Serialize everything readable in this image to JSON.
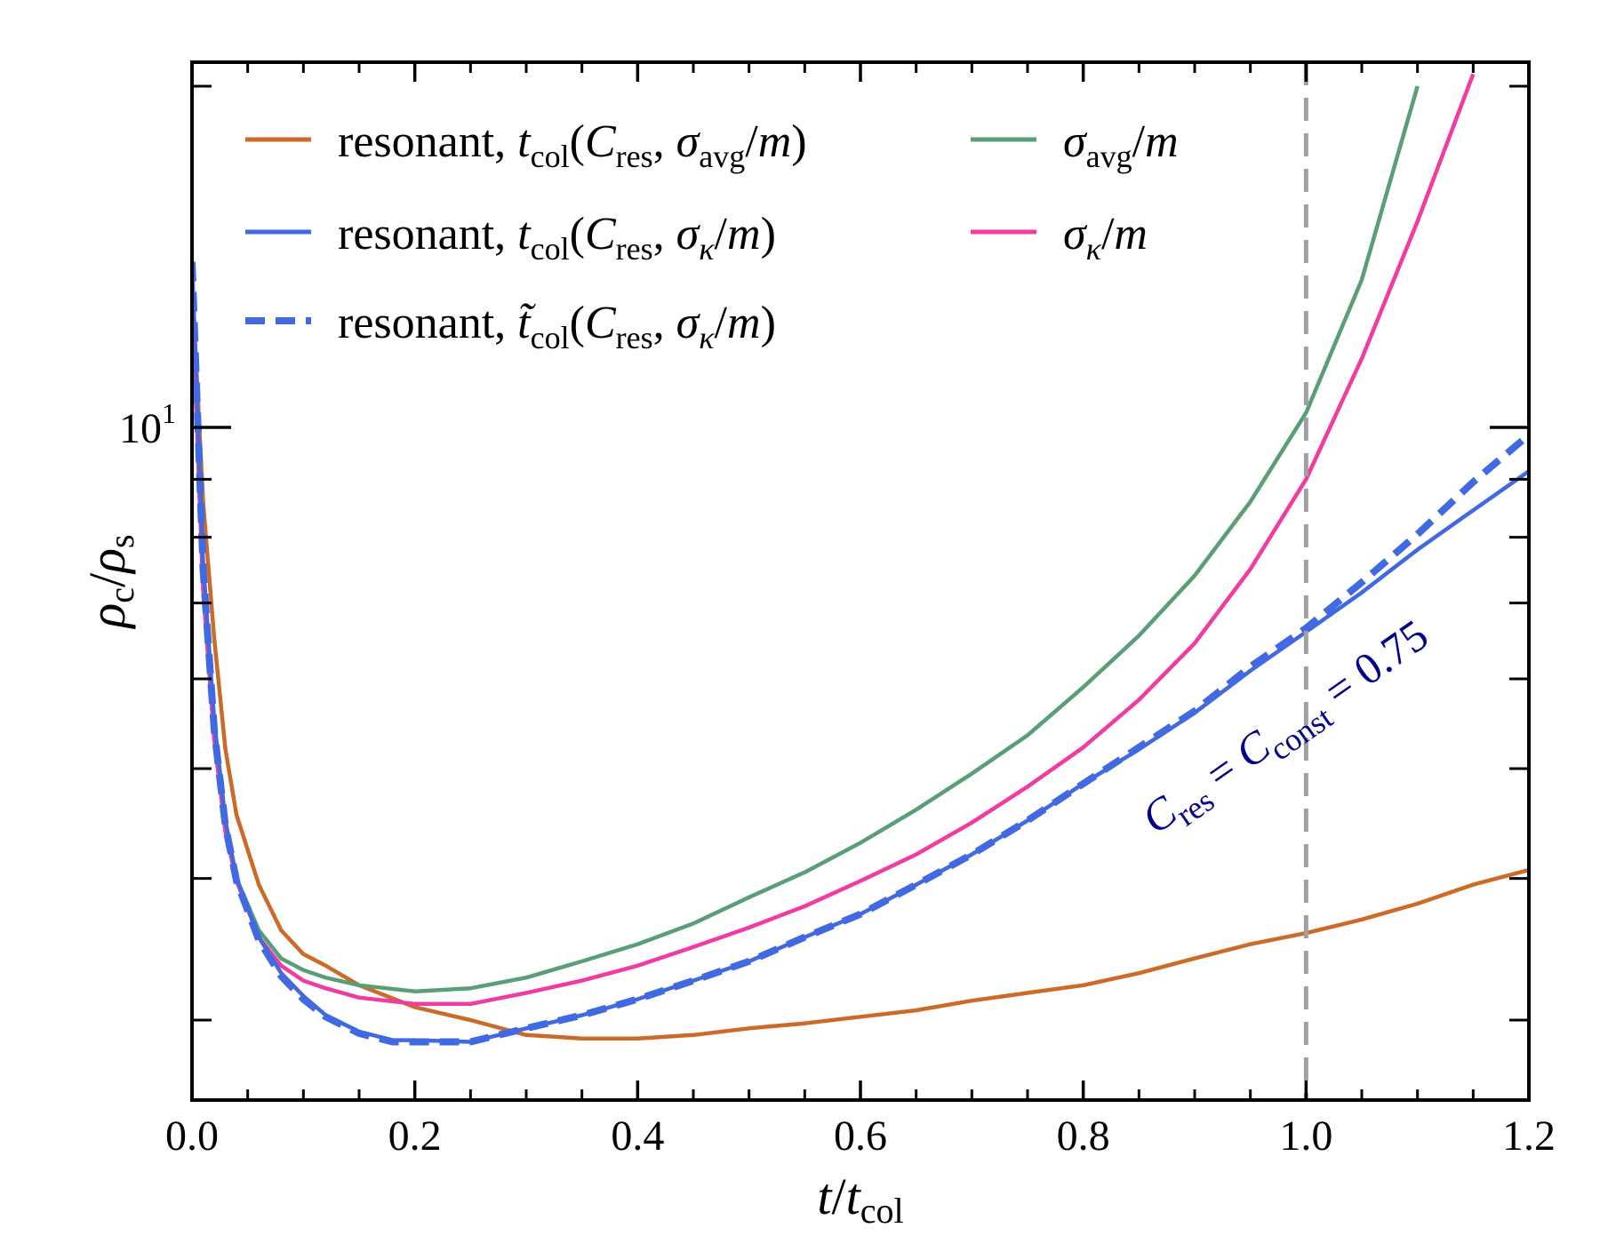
{
  "chart_data": {
    "type": "line",
    "xlabel": "t/t_col",
    "ylabel": "ρ_c/ρ_s",
    "xlim": [
      0.0,
      1.2
    ],
    "ylim": [
      2.55,
      21.0
    ],
    "yscale": "log",
    "x_ticks": [
      "0.0",
      "0.2",
      "0.4",
      "0.6",
      "0.8",
      "1.0",
      "1.2"
    ],
    "y_major_tick": {
      "value": 10,
      "label": "10",
      "exponent": "1"
    },
    "y_minor_ticks": [
      3,
      4,
      5,
      6,
      7,
      8,
      9,
      20
    ],
    "vline": {
      "x": 1.0,
      "color": "#a0a0a0",
      "style": "dashed"
    },
    "annotation": {
      "text": "C_res = C_const = 0.75",
      "color": "#00008b",
      "rotation_deg": -35
    },
    "legend_position": "top-left",
    "series": [
      {
        "name": "resonant, t_col(C_res, σ_avg/m)",
        "color": "#cc6a28",
        "dash": false,
        "x": [
          0.0,
          0.01,
          0.02,
          0.03,
          0.04,
          0.06,
          0.08,
          0.1,
          0.12,
          0.15,
          0.2,
          0.25,
          0.3,
          0.35,
          0.4,
          0.45,
          0.5,
          0.55,
          0.6,
          0.65,
          0.7,
          0.75,
          0.8,
          0.85,
          0.9,
          0.95,
          1.0,
          1.05,
          1.1,
          1.15,
          1.2
        ],
        "y": [
          13.5,
          8.6,
          6.5,
          5.2,
          4.55,
          3.95,
          3.6,
          3.43,
          3.35,
          3.22,
          3.08,
          3.0,
          2.91,
          2.89,
          2.89,
          2.91,
          2.95,
          2.98,
          3.02,
          3.06,
          3.12,
          3.17,
          3.22,
          3.3,
          3.4,
          3.5,
          3.58,
          3.68,
          3.8,
          3.95,
          4.07
        ]
      },
      {
        "name": "resonant, t_col(C_res, σ_κ/m)",
        "color": "#4169e1",
        "dash": false,
        "x": [
          0.0,
          0.01,
          0.02,
          0.03,
          0.04,
          0.06,
          0.08,
          0.1,
          0.12,
          0.15,
          0.18,
          0.2,
          0.25,
          0.3,
          0.35,
          0.4,
          0.45,
          0.5,
          0.55,
          0.6,
          0.65,
          0.7,
          0.75,
          0.8,
          0.85,
          0.9,
          0.95,
          1.0,
          1.05,
          1.1,
          1.15,
          1.2
        ],
        "y": [
          14.0,
          7.6,
          5.5,
          4.5,
          4.0,
          3.55,
          3.3,
          3.15,
          3.03,
          2.93,
          2.88,
          2.88,
          2.87,
          2.95,
          3.03,
          3.13,
          3.25,
          3.38,
          3.55,
          3.72,
          3.95,
          4.2,
          4.5,
          4.85,
          5.2,
          5.6,
          6.1,
          6.6,
          7.15,
          7.8,
          8.45,
          9.15
        ]
      },
      {
        "name": "resonant, t̃_col(C_res, σ_κ/m)",
        "color": "#4169e1",
        "dash": true,
        "x": [
          0.0,
          0.01,
          0.02,
          0.03,
          0.04,
          0.06,
          0.08,
          0.1,
          0.12,
          0.15,
          0.18,
          0.2,
          0.25,
          0.3,
          0.35,
          0.4,
          0.45,
          0.5,
          0.55,
          0.6,
          0.65,
          0.7,
          0.75,
          0.8,
          0.85,
          0.9,
          0.95,
          1.0,
          1.05,
          1.1,
          1.15,
          1.2
        ],
        "y": [
          14.0,
          7.5,
          5.4,
          4.45,
          3.98,
          3.53,
          3.28,
          3.13,
          3.02,
          2.92,
          2.87,
          2.87,
          2.87,
          2.95,
          3.03,
          3.13,
          3.25,
          3.38,
          3.55,
          3.72,
          3.95,
          4.2,
          4.5,
          4.85,
          5.22,
          5.62,
          6.15,
          6.65,
          7.3,
          8.05,
          8.95,
          9.85
        ]
      },
      {
        "name": "σ_avg/m",
        "color": "#5a9e78",
        "dash": false,
        "x": [
          0.0,
          0.01,
          0.02,
          0.03,
          0.04,
          0.06,
          0.08,
          0.1,
          0.12,
          0.15,
          0.2,
          0.25,
          0.3,
          0.35,
          0.4,
          0.45,
          0.5,
          0.55,
          0.6,
          0.65,
          0.7,
          0.75,
          0.8,
          0.85,
          0.9,
          0.95,
          1.0,
          1.05,
          1.1
        ],
        "y": [
          13.0,
          7.2,
          5.3,
          4.4,
          4.0,
          3.6,
          3.4,
          3.32,
          3.27,
          3.22,
          3.18,
          3.2,
          3.27,
          3.38,
          3.5,
          3.65,
          3.85,
          4.05,
          4.3,
          4.6,
          4.95,
          5.35,
          5.9,
          6.55,
          7.4,
          8.6,
          10.3,
          13.5,
          20.0
        ]
      },
      {
        "name": "σ_κ/m",
        "color": "#f03ca0",
        "dash": false,
        "x": [
          0.0,
          0.01,
          0.02,
          0.03,
          0.04,
          0.06,
          0.08,
          0.1,
          0.12,
          0.15,
          0.2,
          0.25,
          0.3,
          0.35,
          0.4,
          0.45,
          0.5,
          0.55,
          0.6,
          0.65,
          0.7,
          0.75,
          0.8,
          0.85,
          0.9,
          0.95,
          1.0,
          1.05,
          1.1,
          1.15
        ],
        "y": [
          13.0,
          7.2,
          5.3,
          4.4,
          3.98,
          3.55,
          3.35,
          3.25,
          3.2,
          3.14,
          3.1,
          3.1,
          3.17,
          3.25,
          3.35,
          3.48,
          3.62,
          3.78,
          3.98,
          4.2,
          4.48,
          4.82,
          5.22,
          5.75,
          6.45,
          7.5,
          9.0,
          11.5,
          15.2,
          20.5
        ]
      }
    ]
  }
}
